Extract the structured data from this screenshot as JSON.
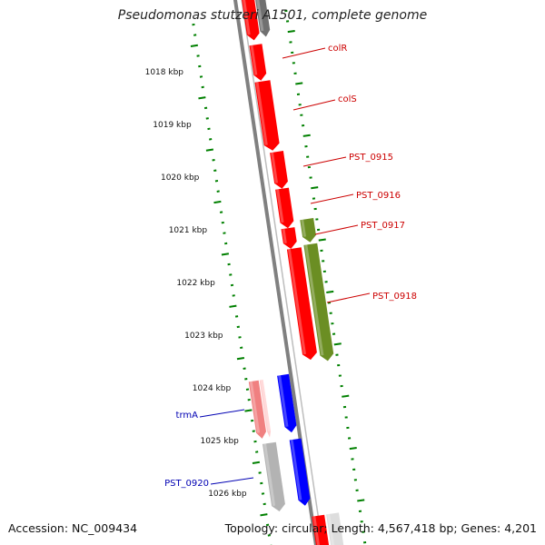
{
  "title": "Pseudomonas stutzeri A1501, complete genome",
  "footer": {
    "accession": "Accession: NC_009434",
    "summary": "Topology: circular; Length: 4,567,418 bp; Genes: 4,201"
  },
  "colors": {
    "backbone": "#808080",
    "red_gene": "#ff0000",
    "olive_gene": "#6b8e23",
    "blue_gene": "#0000ff",
    "pink_gene": "#f08080",
    "grey_gene": "#b3b3b3",
    "dark_grey_gene": "#707070",
    "tick_green": "#008000",
    "label_red": "#cc0000",
    "label_blue": "#0000b3"
  },
  "scale_labels": [
    "1018 kbp",
    "1019 kbp",
    "1020 kbp",
    "1021 kbp",
    "1022 kbp",
    "1023 kbp",
    "1024 kbp",
    "1025 kbp",
    "1026 kbp"
  ],
  "gene_labels": [
    {
      "name": "colR",
      "color": "red"
    },
    {
      "name": "colS",
      "color": "red"
    },
    {
      "name": "PST_0915",
      "color": "red"
    },
    {
      "name": "PST_0916",
      "color": "red"
    },
    {
      "name": "PST_0917",
      "color": "red"
    },
    {
      "name": "PST_0918",
      "color": "red"
    },
    {
      "name": "trmA",
      "color": "blue"
    },
    {
      "name": "PST_0920",
      "color": "blue"
    }
  ]
}
